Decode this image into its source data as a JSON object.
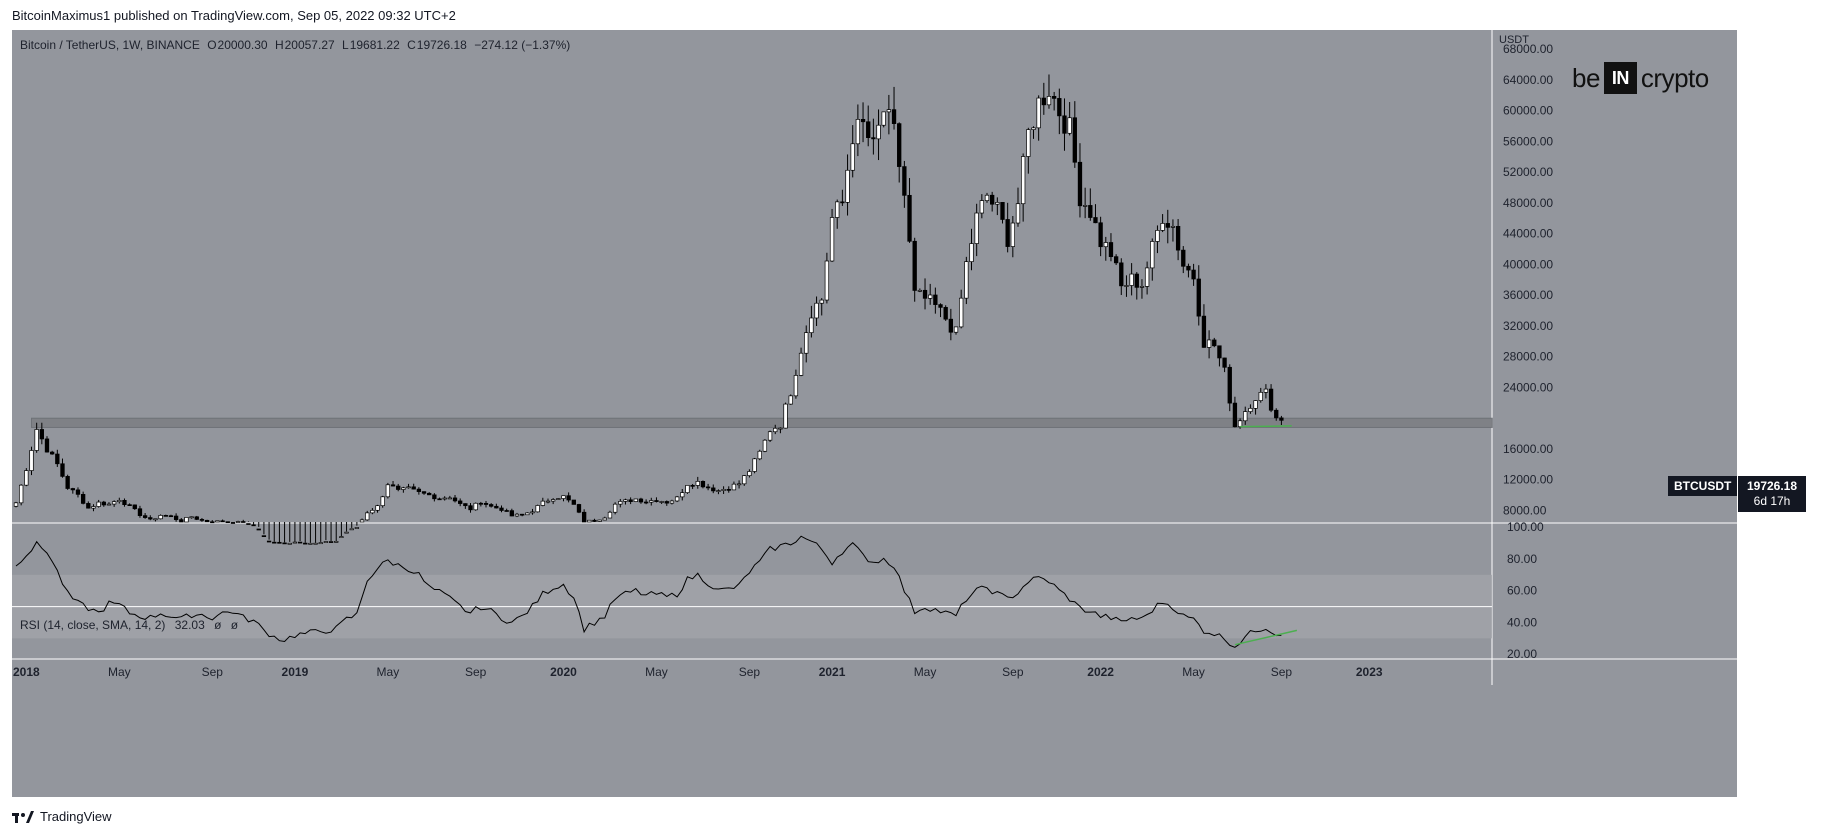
{
  "header": {
    "publisher": "BitcoinMaximus1 published on TradingView.com, Sep 05, 2022 09:32 UTC+2"
  },
  "footer": {
    "brand": "TradingView",
    "icon": "tradingview-logo-icon"
  },
  "logo": {
    "left": "be",
    "box": "IN",
    "right": "crypto"
  },
  "legend": {
    "symbol": "Bitcoin / TetherUS, 1W, BINANCE",
    "o_label": "O",
    "o_value": "20000.30",
    "h_label": "H",
    "h_value": "20057.27",
    "l_label": "L",
    "l_value": "19681.22",
    "c_label": "C",
    "c_value": "19726.18",
    "change": "−274.12 (−1.37%)"
  },
  "rsi_legend": {
    "label": "RSI (14, close, SMA, 14, 2)",
    "value": "32.03",
    "extra1": "ø",
    "extra2": "ø"
  },
  "price_tag": {
    "symbol": "BTCUSDT",
    "price": "19726.18",
    "countdown": "6d 17h"
  },
  "colors": {
    "background": "#93969d",
    "up_candle": "#ffffff",
    "down_candle": "#000000",
    "support_zone": "#7d7f84",
    "trendline": "#4caf50",
    "rsi_line": "#000000",
    "rsi_band": "#a2a4aa"
  },
  "chart_data": [
    {
      "type": "candlestick",
      "title": "Bitcoin / TetherUS, 1W, BINANCE",
      "y_axis_unit": "USDT",
      "y_ticks": [
        8000,
        12000,
        16000,
        20000,
        24000,
        28000,
        32000,
        36000,
        40000,
        44000,
        48000,
        52000,
        56000,
        60000,
        64000,
        68000
      ],
      "y_tick_labels": [
        "8000.00",
        "12000.00",
        "16000.00",
        "",
        "24000.00",
        "28000.00",
        "32000.00",
        "36000.00",
        "40000.00",
        "44000.00",
        "48000.00",
        "52000.00",
        "56000.00",
        "60000.00",
        "64000.00",
        "68000.00"
      ],
      "ylim": [
        6500,
        70500
      ],
      "x_ticks": [
        "2018",
        "May",
        "Sep",
        "2019",
        "May",
        "Sep",
        "2020",
        "May",
        "Sep",
        "2021",
        "May",
        "Sep",
        "2022",
        "May",
        "Sep",
        "2023"
      ],
      "x_tick_weeks": [
        2,
        20,
        38,
        54,
        72,
        89,
        106,
        124,
        142,
        158,
        176,
        193,
        210,
        228,
        245,
        262
      ],
      "weeks_total": 285,
      "last_week_index": 245,
      "current_price": 19726.18,
      "support_zone": [
        18800,
        20000
      ],
      "trendline_start": {
        "week": 237,
        "price": 18900
      },
      "trendline_end": {
        "week": 247,
        "price": 19000
      },
      "weekly_close_anchors": [
        [
          0,
          9000
        ],
        [
          2,
          13500
        ],
        [
          4,
          18600
        ],
        [
          6,
          16000
        ],
        [
          8,
          14000
        ],
        [
          10,
          11000
        ],
        [
          12,
          10000
        ],
        [
          14,
          8300
        ],
        [
          16,
          9000
        ],
        [
          18,
          8800
        ],
        [
          20,
          9500
        ],
        [
          22,
          8500
        ],
        [
          24,
          7500
        ],
        [
          26,
          6700
        ],
        [
          28,
          7400
        ],
        [
          30,
          7200
        ],
        [
          32,
          6600
        ],
        [
          34,
          7200
        ],
        [
          36,
          6700
        ],
        [
          38,
          6500
        ],
        [
          40,
          6600
        ],
        [
          42,
          6400
        ],
        [
          44,
          6400
        ],
        [
          46,
          5600
        ],
        [
          48,
          4000
        ],
        [
          50,
          3800
        ],
        [
          52,
          3700
        ],
        [
          54,
          3900
        ],
        [
          58,
          3700
        ],
        [
          62,
          4000
        ],
        [
          64,
          5200
        ],
        [
          66,
          5800
        ],
        [
          68,
          7800
        ],
        [
          70,
          8500
        ],
        [
          72,
          11500
        ],
        [
          74,
          10500
        ],
        [
          76,
          10800
        ],
        [
          78,
          10300
        ],
        [
          80,
          10000
        ],
        [
          82,
          9600
        ],
        [
          84,
          9800
        ],
        [
          86,
          8800
        ],
        [
          88,
          8200
        ],
        [
          90,
          9200
        ],
        [
          92,
          8500
        ],
        [
          94,
          8200
        ],
        [
          96,
          7300
        ],
        [
          98,
          7400
        ],
        [
          100,
          8000
        ],
        [
          102,
          9000
        ],
        [
          104,
          9700
        ],
        [
          106,
          9800
        ],
        [
          108,
          8700
        ],
        [
          110,
          6500
        ],
        [
          112,
          6700
        ],
        [
          114,
          7200
        ],
        [
          116,
          8800
        ],
        [
          118,
          9200
        ],
        [
          120,
          9500
        ],
        [
          122,
          9200
        ],
        [
          124,
          9400
        ],
        [
          126,
          9100
        ],
        [
          128,
          9600
        ],
        [
          130,
          11500
        ],
        [
          132,
          11700
        ],
        [
          134,
          11000
        ],
        [
          136,
          10600
        ],
        [
          138,
          11000
        ],
        [
          140,
          11500
        ],
        [
          142,
          13200
        ],
        [
          144,
          15500
        ],
        [
          146,
          18500
        ],
        [
          148,
          19200
        ],
        [
          150,
          23500
        ],
        [
          152,
          29000
        ],
        [
          154,
          34000
        ],
        [
          156,
          35500
        ],
        [
          158,
          46000
        ],
        [
          160,
          48000
        ],
        [
          162,
          57000
        ],
        [
          164,
          58000
        ],
        [
          166,
          55000
        ],
        [
          168,
          60000
        ],
        [
          170,
          57000
        ],
        [
          172,
          49000
        ],
        [
          174,
          36000
        ],
        [
          176,
          35500
        ],
        [
          178,
          34500
        ],
        [
          180,
          33000
        ],
        [
          182,
          31000
        ],
        [
          184,
          40000
        ],
        [
          186,
          46000
        ],
        [
          188,
          49000
        ],
        [
          190,
          47000
        ],
        [
          192,
          43500
        ],
        [
          194,
          48000
        ],
        [
          196,
          57000
        ],
        [
          198,
          61000
        ],
        [
          200,
          63000
        ],
        [
          202,
          60000
        ],
        [
          204,
          57500
        ],
        [
          206,
          49000
        ],
        [
          208,
          47000
        ],
        [
          210,
          43000
        ],
        [
          212,
          41500
        ],
        [
          214,
          37000
        ],
        [
          216,
          38000
        ],
        [
          218,
          37500
        ],
        [
          220,
          42000
        ],
        [
          222,
          46500
        ],
        [
          224,
          45000
        ],
        [
          226,
          40000
        ],
        [
          228,
          38500
        ],
        [
          230,
          30000
        ],
        [
          232,
          29500
        ],
        [
          234,
          26000
        ],
        [
          236,
          19000
        ],
        [
          238,
          21000
        ],
        [
          240,
          22800
        ],
        [
          242,
          23300
        ],
        [
          244,
          20000
        ],
        [
          245,
          19726
        ]
      ]
    },
    {
      "type": "line",
      "title": "RSI (14, close, SMA, 14, 2)",
      "y_ticks": [
        20,
        40,
        60,
        80,
        100
      ],
      "y_tick_labels": [
        "20.00",
        "40.00",
        "60.00",
        "80.00",
        "100.00"
      ],
      "ylim": [
        17,
        102
      ],
      "bands": [
        30,
        70
      ],
      "midline": 50,
      "trendline_start": {
        "week": 236,
        "value": 26
      },
      "trendline_end": {
        "week": 248,
        "value": 35
      },
      "rsi_anchors": [
        [
          0,
          77
        ],
        [
          2,
          83
        ],
        [
          4,
          89
        ],
        [
          6,
          85
        ],
        [
          8,
          72
        ],
        [
          10,
          58
        ],
        [
          12,
          52
        ],
        [
          14,
          49
        ],
        [
          16,
          46
        ],
        [
          18,
          52
        ],
        [
          20,
          51
        ],
        [
          22,
          46
        ],
        [
          24,
          44
        ],
        [
          26,
          43
        ],
        [
          28,
          46
        ],
        [
          30,
          44
        ],
        [
          32,
          42
        ],
        [
          34,
          45
        ],
        [
          36,
          45
        ],
        [
          38,
          43
        ],
        [
          40,
          46
        ],
        [
          42,
          47
        ],
        [
          44,
          43
        ],
        [
          46,
          41
        ],
        [
          48,
          35
        ],
        [
          50,
          31
        ],
        [
          52,
          29
        ],
        [
          54,
          32
        ],
        [
          58,
          34
        ],
        [
          62,
          36
        ],
        [
          64,
          42
        ],
        [
          66,
          45
        ],
        [
          68,
          67
        ],
        [
          70,
          74
        ],
        [
          72,
          79
        ],
        [
          74,
          76
        ],
        [
          76,
          74
        ],
        [
          78,
          70
        ],
        [
          80,
          62
        ],
        [
          82,
          59
        ],
        [
          84,
          55
        ],
        [
          86,
          50
        ],
        [
          88,
          46
        ],
        [
          90,
          50
        ],
        [
          92,
          47
        ],
        [
          94,
          43
        ],
        [
          96,
          40
        ],
        [
          98,
          44
        ],
        [
          100,
          50
        ],
        [
          102,
          58
        ],
        [
          104,
          62
        ],
        [
          106,
          64
        ],
        [
          108,
          56
        ],
        [
          110,
          36
        ],
        [
          112,
          40
        ],
        [
          114,
          44
        ],
        [
          116,
          55
        ],
        [
          118,
          58
        ],
        [
          120,
          60
        ],
        [
          122,
          57
        ],
        [
          124,
          58
        ],
        [
          126,
          56
        ],
        [
          128,
          58
        ],
        [
          130,
          67
        ],
        [
          132,
          70
        ],
        [
          134,
          65
        ],
        [
          136,
          60
        ],
        [
          138,
          61
        ],
        [
          140,
          63
        ],
        [
          142,
          72
        ],
        [
          144,
          78
        ],
        [
          146,
          86
        ],
        [
          148,
          88
        ],
        [
          150,
          90
        ],
        [
          152,
          94
        ],
        [
          154,
          91
        ],
        [
          156,
          86
        ],
        [
          158,
          78
        ],
        [
          160,
          85
        ],
        [
          162,
          89
        ],
        [
          164,
          82
        ],
        [
          166,
          78
        ],
        [
          168,
          80
        ],
        [
          170,
          76
        ],
        [
          172,
          60
        ],
        [
          174,
          47
        ],
        [
          176,
          50
        ],
        [
          178,
          48
        ],
        [
          180,
          46
        ],
        [
          182,
          44
        ],
        [
          184,
          55
        ],
        [
          186,
          60
        ],
        [
          188,
          62
        ],
        [
          190,
          58
        ],
        [
          192,
          55
        ],
        [
          194,
          59
        ],
        [
          196,
          66
        ],
        [
          198,
          68
        ],
        [
          200,
          66
        ],
        [
          202,
          60
        ],
        [
          204,
          55
        ],
        [
          206,
          49
        ],
        [
          208,
          47
        ],
        [
          210,
          44
        ],
        [
          212,
          43
        ],
        [
          214,
          40
        ],
        [
          216,
          43
        ],
        [
          218,
          42
        ],
        [
          220,
          48
        ],
        [
          222,
          53
        ],
        [
          224,
          50
        ],
        [
          226,
          44
        ],
        [
          228,
          42
        ],
        [
          230,
          35
        ],
        [
          232,
          33
        ],
        [
          234,
          30
        ],
        [
          236,
          25
        ],
        [
          238,
          31
        ],
        [
          240,
          35
        ],
        [
          242,
          37
        ],
        [
          244,
          33
        ],
        [
          245,
          32
        ]
      ]
    }
  ]
}
